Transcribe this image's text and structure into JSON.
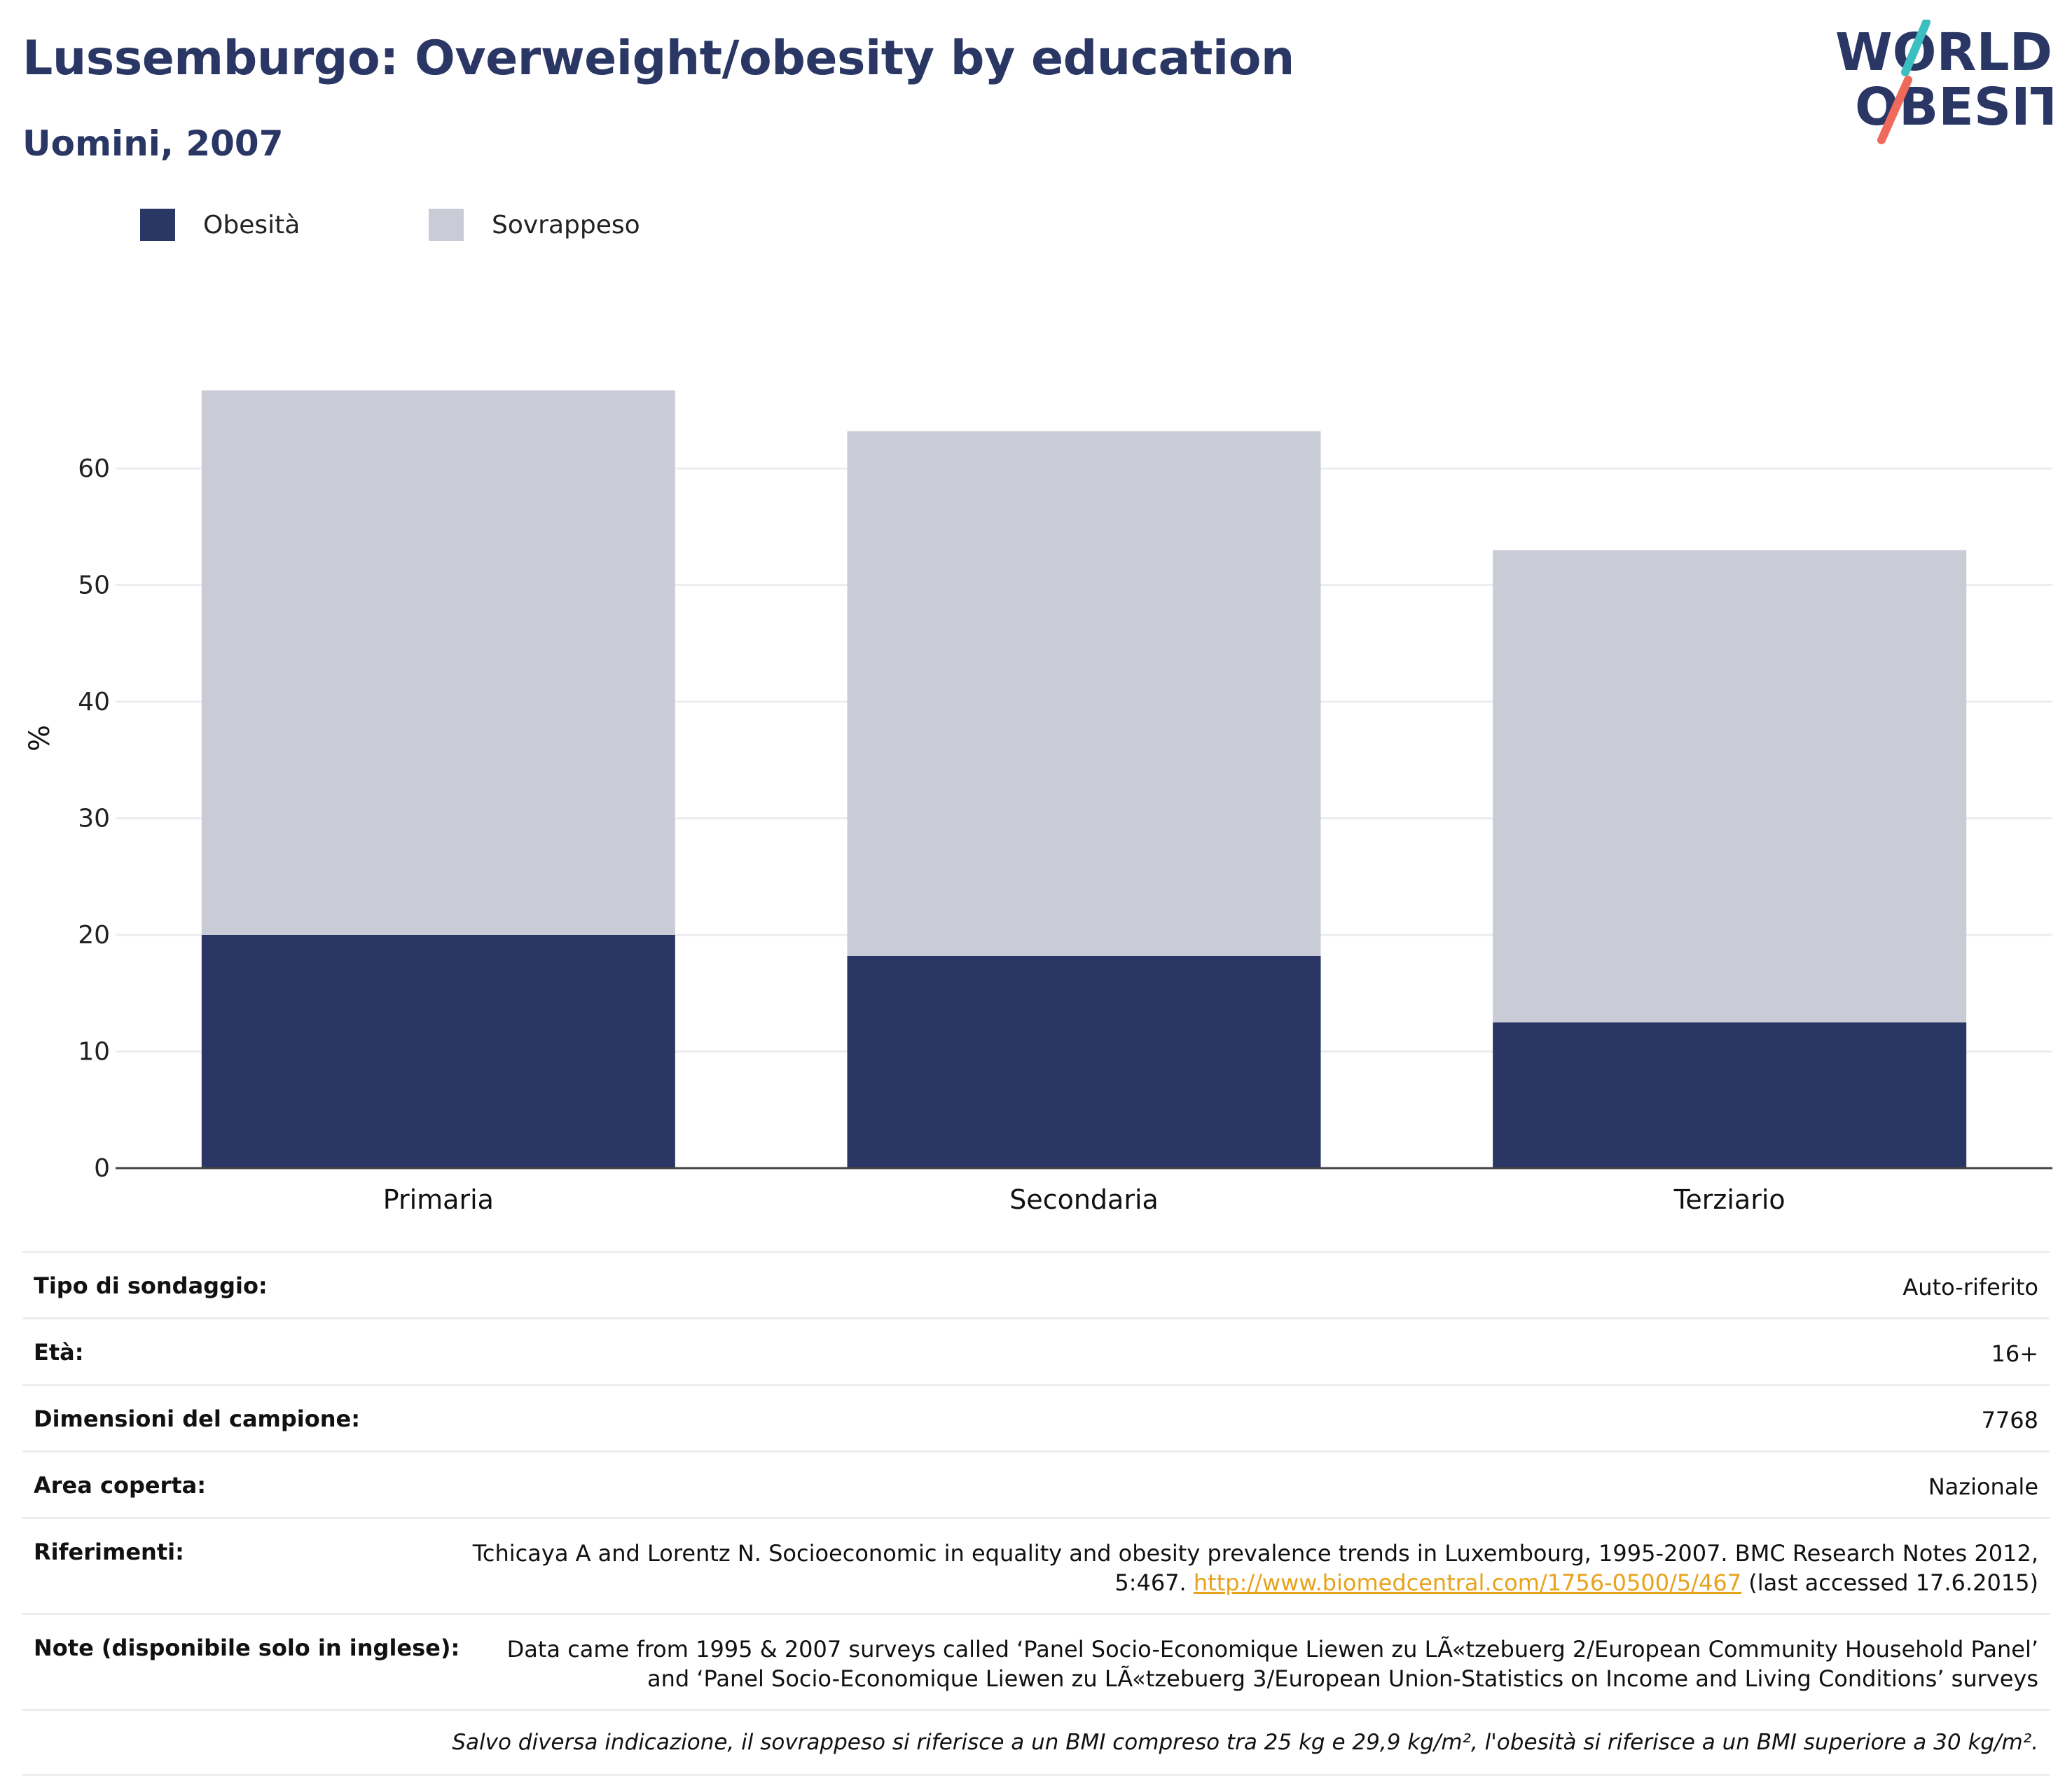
{
  "header": {
    "title": "Lussemburgo: Overweight/obesity by education",
    "subtitle": "Uomini, 2007",
    "logo_line1": "WORLD",
    "logo_line2": "OBESITY"
  },
  "legend": [
    {
      "label": "Obesità",
      "color": "#2a3664"
    },
    {
      "label": "Sovrappeso",
      "color": "#c9cbd6"
    }
  ],
  "chart_data": {
    "type": "bar",
    "stacked": true,
    "categories": [
      "Primaria",
      "Secondaria",
      "Terziario"
    ],
    "series": [
      {
        "name": "Obesità",
        "values": [
          20.0,
          18.2,
          12.5
        ],
        "color": "#2a3664"
      },
      {
        "name": "Sovrappeso",
        "values": [
          46.7,
          45.0,
          40.5
        ],
        "color": "#c9cbd6"
      }
    ],
    "title": "Lussemburgo: Overweight/obesity by education",
    "subtitle": "Uomini, 2007",
    "xlabel": "",
    "ylabel": "%",
    "ylim": [
      0,
      70
    ],
    "yticks": [
      0,
      10,
      20,
      30,
      40,
      50,
      60
    ],
    "grid": true,
    "legend_position": "top-left"
  },
  "info": {
    "rows": [
      {
        "label": "Tipo di sondaggio:",
        "value": "Auto-riferito"
      },
      {
        "label": "Età:",
        "value": "16+"
      },
      {
        "label": "Dimensioni del campione:",
        "value": "7768"
      },
      {
        "label": "Area coperta:",
        "value": "Nazionale"
      }
    ],
    "references_label": "Riferimenti:",
    "references_text": "Tchicaya A and Lorentz N. Socioeconomic in equality and obesity prevalence trends in Luxembourg, 1995-2007. BMC Research Notes 2012, 5:467.",
    "references_link": "http://www.biomedcentral.com/1756-0500/5/467",
    "references_suffix": "(last accessed 17.6.2015)",
    "notes_label": "Note (disponibile solo in inglese):",
    "notes_text": "Data came from 1995 & 2007 surveys called ‘Panel Socio-Economique Liewen zu LÃ«tzebuerg 2/European Community Household Panel’ and ‘Panel Socio-Economique Liewen zu LÃ«tzebuerg 3/European Union-Statistics on Income and Living Conditions’ surveys",
    "footnote": "Salvo diversa indicazione, il sovrappeso si riferisce a un BMI compreso tra 25 kg e 29,9 kg/m², l'obesità si riferisce a un BMI superiore a 30 kg/m²."
  }
}
